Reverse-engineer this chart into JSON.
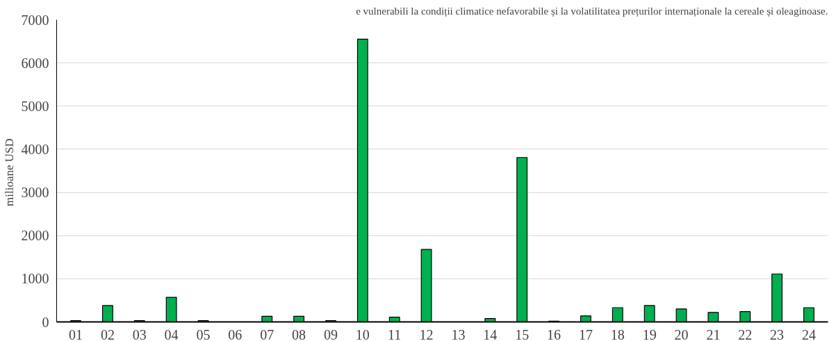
{
  "chart_data": {
    "type": "bar",
    "ylabel": "milioane  USD",
    "annotations": [
      "e vulnerabili la condiții climatice nefavorabile și la volatilitatea prețurilor internaționale la cereale și oleaginoase."
    ],
    "categories": [
      "01",
      "02",
      "03",
      "04",
      "05",
      "06",
      "07",
      "08",
      "09",
      "10",
      "11",
      "12",
      "13",
      "14",
      "15",
      "16",
      "17",
      "18",
      "19",
      "20",
      "21",
      "22",
      "23",
      "24"
    ],
    "values": [
      30,
      380,
      30,
      570,
      30,
      null,
      130,
      130,
      30,
      6550,
      110,
      1680,
      null,
      80,
      3810,
      20,
      140,
      330,
      380,
      300,
      220,
      240,
      1110,
      330
    ],
    "color": "#00b050",
    "ylim": [
      0,
      7000
    ],
    "yticks": [
      0,
      1000,
      2000,
      3000,
      4000,
      5000,
      6000,
      7000
    ],
    "grid": "y"
  }
}
